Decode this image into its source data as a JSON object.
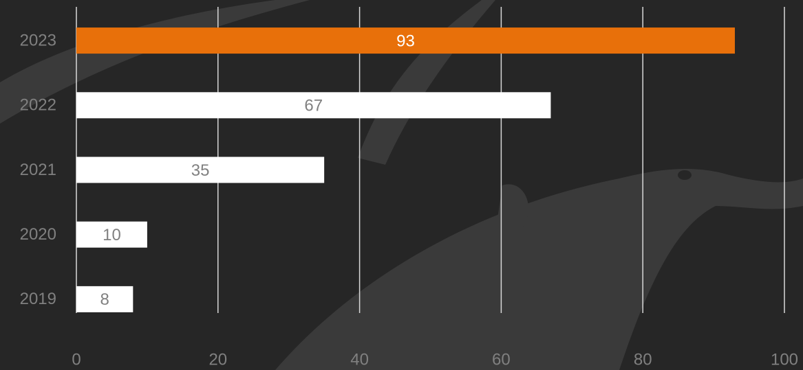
{
  "chart_data": {
    "type": "barh",
    "categories": [
      "2023",
      "2022",
      "2021",
      "2020",
      "2019"
    ],
    "values": [
      93,
      67,
      35,
      10,
      8
    ],
    "colors": [
      "#e8700a",
      "#ffffff",
      "#ffffff",
      "#ffffff",
      "#ffffff"
    ],
    "label_colors": [
      "#ffffff",
      "#808080",
      "#808080",
      "#808080",
      "#808080"
    ],
    "xlim": [
      0,
      100
    ],
    "xticks": [
      0,
      20,
      40,
      60,
      80,
      100
    ],
    "grid": true
  }
}
